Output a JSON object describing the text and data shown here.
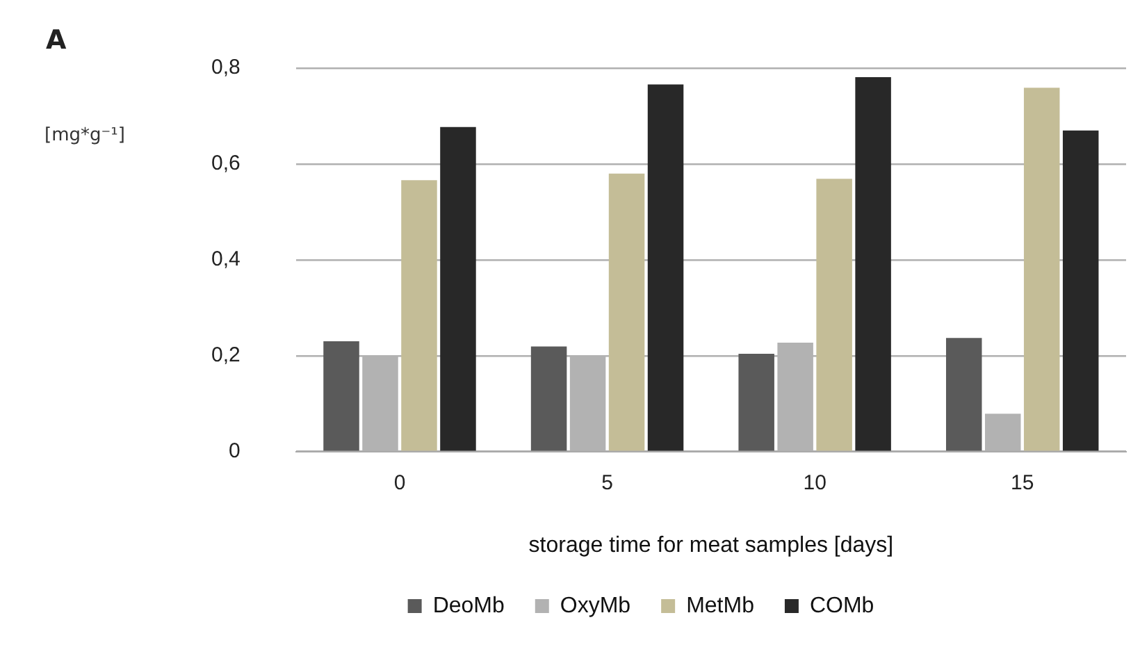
{
  "chart_data": {
    "type": "bar",
    "title": "A",
    "ylabel": "[mg*g⁻¹]",
    "xlabel": "storage time for meat samples [days]",
    "categories": [
      "0",
      "5",
      "10",
      "15"
    ],
    "series": [
      {
        "name": "DeoMb",
        "color": "#5a5a5a",
        "values": [
          0.23,
          0.219,
          0.204,
          0.237
        ]
      },
      {
        "name": "OxyMb",
        "color": "#b2b2b2",
        "values": [
          0.2,
          0.2,
          0.227,
          0.079
        ]
      },
      {
        "name": "MetMb",
        "color": "#c4bd97",
        "values": [
          0.566,
          0.58,
          0.569,
          0.759
        ]
      },
      {
        "name": "COMb",
        "color": "#282828",
        "values": [
          0.677,
          0.766,
          0.781,
          0.67
        ]
      }
    ],
    "ylim": [
      0,
      0.8
    ],
    "yticks": [
      0,
      {
        "value": 0.2,
        "label": "0,2"
      },
      {
        "value": 0.4,
        "label": "0,4"
      },
      {
        "value": 0.6,
        "label": "0,6"
      },
      {
        "value": 0.8,
        "label": "0,8"
      }
    ],
    "grid": "y",
    "legend": "bottom"
  }
}
